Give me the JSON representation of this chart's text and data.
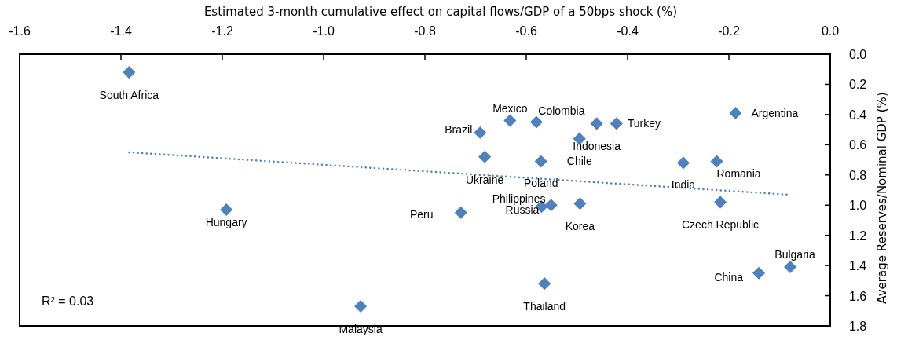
{
  "chart_data": {
    "type": "scatter",
    "xlabel": "Estimated 3-month cumulative effect on capital flows/GDP of a 50bps shock (%)",
    "ylabel": "Average Reserves/Nominal GDP (%)",
    "xlim": [
      -1.6,
      0
    ],
    "xticks": [
      {
        "value": -1.6,
        "label": "-1.6"
      },
      {
        "value": -1.4,
        "label": "-1.4"
      },
      {
        "value": -1.2,
        "label": "-1.2"
      },
      {
        "value": -1.0,
        "label": "-1.0"
      },
      {
        "value": -0.8,
        "label": "-0.8"
      },
      {
        "value": -0.6,
        "label": "-0.6"
      },
      {
        "value": -0.4,
        "label": "-0.4"
      },
      {
        "value": -0.2,
        "label": "-0.2"
      },
      {
        "value": 0,
        "label": "0.0"
      }
    ],
    "ylim": [
      1.8,
      0
    ],
    "yticks": [
      {
        "value": 0,
        "label": "0.0"
      },
      0.2,
      0.4,
      0.6,
      0.8,
      {
        "value": 1.0,
        "label": "1.0"
      },
      1.2,
      1.4,
      1.6,
      1.8
    ],
    "marker": "diamond",
    "grid": false,
    "series": [
      {
        "color": "#4f81bd",
        "x": [
          -1.384,
          -1.192,
          -0.927,
          -0.729,
          -0.691,
          -0.682,
          -0.632,
          -0.58,
          -0.461,
          -0.422,
          -0.495,
          -0.571,
          -0.551,
          -0.57,
          -0.494,
          -0.564,
          -0.29,
          -0.224,
          -0.217,
          -0.187,
          -0.141,
          -0.079
        ],
        "values": [
          0.12,
          1.03,
          1.67,
          1.05,
          0.52,
          0.68,
          0.44,
          0.45,
          0.46,
          0.46,
          0.56,
          0.71,
          1.0,
          1.01,
          0.99,
          1.52,
          0.72,
          0.71,
          0.98,
          0.39,
          1.45,
          1.41
        ]
      },
      {
        "type": "line",
        "color": "#4f81bd",
        "line_style": "dotted",
        "marker": "none",
        "x": [
          -1.384,
          -0.086
        ],
        "values": [
          0.65,
          0.93
        ]
      }
    ],
    "annotations": [
      {
        "text": "South Africa",
        "x": -1.384,
        "y": 0.12
      },
      {
        "text": "Hungary",
        "x": -1.192,
        "y": 1.03
      },
      {
        "text": "Malaysia",
        "x": -0.927,
        "y": 1.67
      },
      {
        "text": "Peru",
        "x": -0.729,
        "y": 1.05
      },
      {
        "text": "Brazil",
        "x": -0.691,
        "y": 0.52
      },
      {
        "text": "Ukraine",
        "x": -0.682,
        "y": 0.68
      },
      {
        "text": "Mexico",
        "x": -0.632,
        "y": 0.44
      },
      {
        "text": "Colombia",
        "x": -0.58,
        "y": 0.45
      },
      {
        "text": "Indonesia",
        "x": -0.461,
        "y": 0.46
      },
      {
        "text": "Turkey",
        "x": -0.422,
        "y": 0.46
      },
      {
        "text": "Chile",
        "x": -0.495,
        "y": 0.56
      },
      {
        "text": "Poland",
        "x": -0.571,
        "y": 0.71
      },
      {
        "text": "Philippines",
        "x": -0.551,
        "y": 1.0
      },
      {
        "text": "Russia",
        "x": -0.57,
        "y": 1.01
      },
      {
        "text": "Korea",
        "x": -0.494,
        "y": 0.99
      },
      {
        "text": "Thailand",
        "x": -0.564,
        "y": 1.52
      },
      {
        "text": "India",
        "x": -0.29,
        "y": 0.72
      },
      {
        "text": "Romania",
        "x": -0.224,
        "y": 0.71
      },
      {
        "text": "Czech Republic",
        "x": -0.217,
        "y": 0.98
      },
      {
        "text": "Argentina",
        "x": -0.187,
        "y": 0.39
      },
      {
        "text": "China",
        "x": -0.141,
        "y": 1.45
      },
      {
        "text": "Bulgaria",
        "x": -0.079,
        "y": 1.41
      },
      "R² = 0.03"
    ]
  }
}
